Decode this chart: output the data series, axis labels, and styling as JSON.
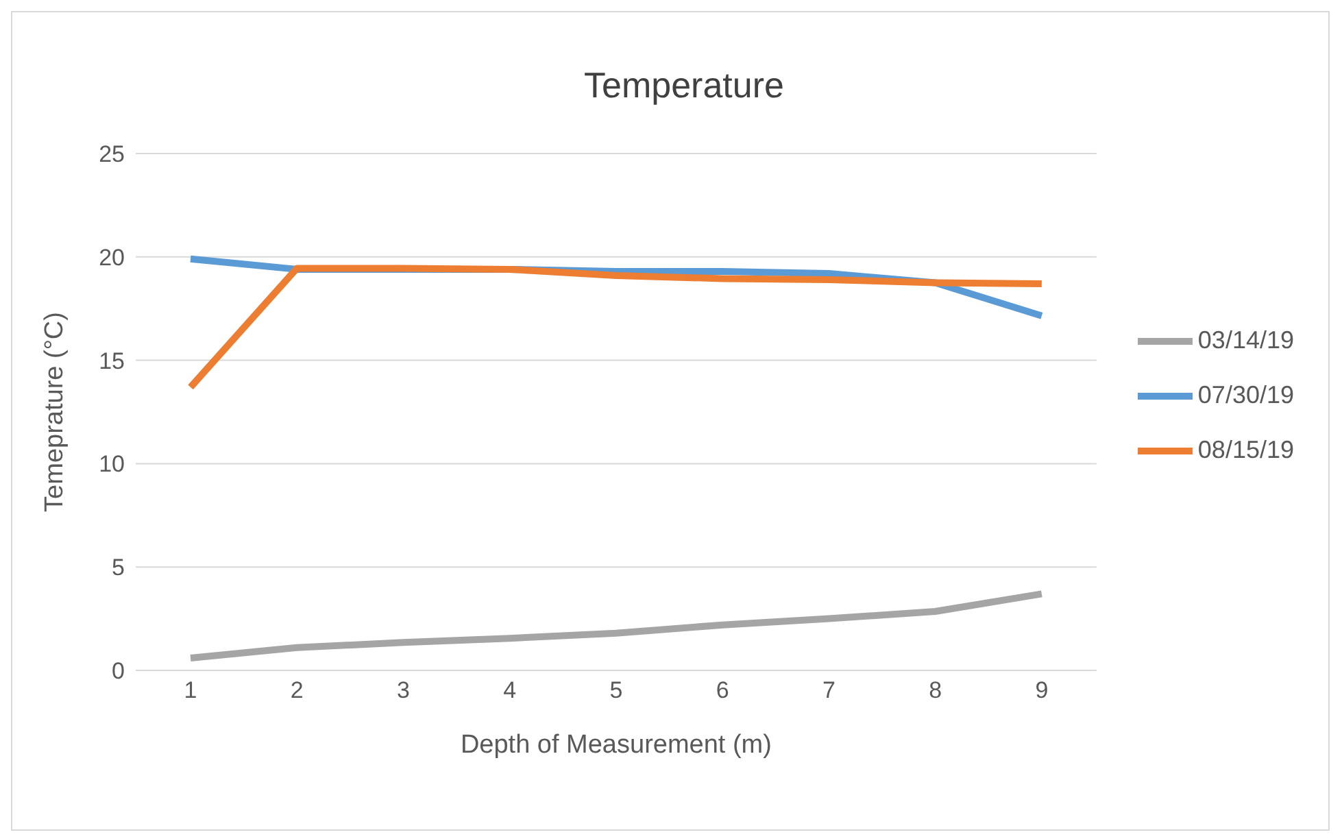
{
  "chart_data": {
    "type": "line",
    "title": "Temperature",
    "xlabel": "Depth of Measurement (m)",
    "ylabel": "Temeprature (°C)",
    "categories": [
      "1",
      "2",
      "3",
      "4",
      "5",
      "6",
      "7",
      "8",
      "9"
    ],
    "series": [
      {
        "name": "03/14/19",
        "color": "#a5a5a5",
        "values": [
          0.6,
          1.1,
          1.35,
          1.55,
          1.8,
          2.2,
          2.5,
          2.85,
          3.7
        ]
      },
      {
        "name": "07/30/19",
        "color": "#5b9bd5",
        "values": [
          19.9,
          19.4,
          19.4,
          19.4,
          19.3,
          19.3,
          19.2,
          18.75,
          17.15
        ]
      },
      {
        "name": "08/15/19",
        "color": "#ed7d31",
        "values": [
          13.7,
          19.45,
          19.45,
          19.4,
          19.1,
          18.95,
          18.9,
          18.75,
          18.7
        ]
      }
    ],
    "ylim": [
      0,
      25
    ],
    "yticks": [
      0,
      5,
      10,
      15,
      20,
      25
    ],
    "grid": "y",
    "legend": "right",
    "marker": "none",
    "line_style": "solid"
  }
}
